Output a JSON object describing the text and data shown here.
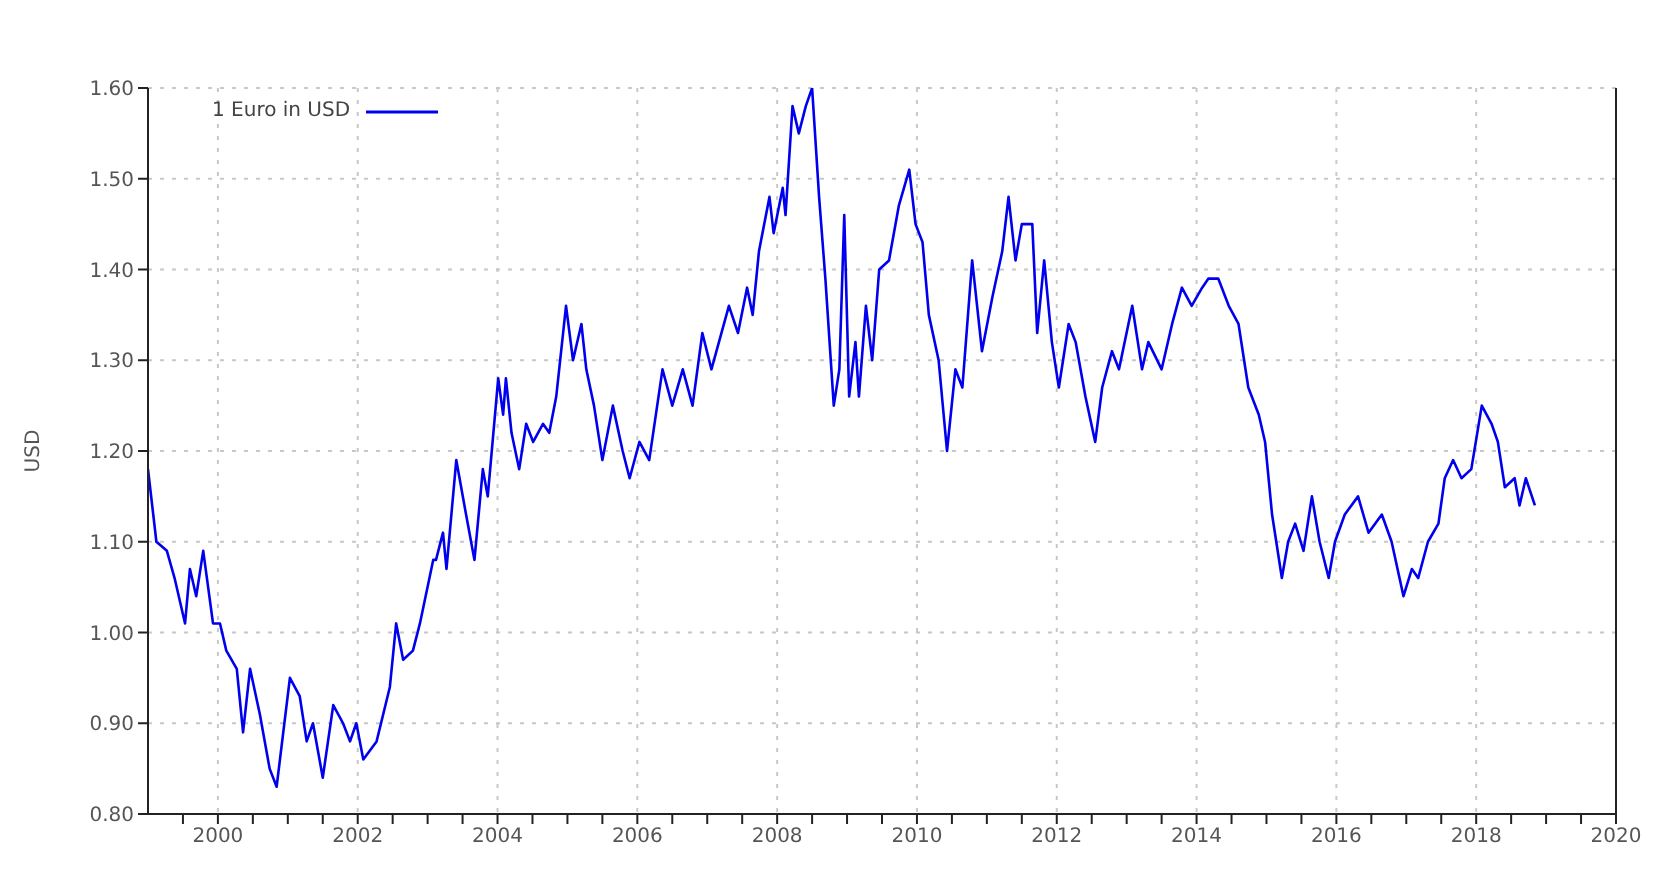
{
  "chart_data": {
    "type": "line",
    "ylabel": "USD",
    "legend": "top left",
    "grid": true,
    "marker": "none",
    "line_style": "solid",
    "xlim": [
      1999,
      2020
    ],
    "ylim": [
      0.8,
      1.6
    ],
    "xticks": [
      {
        "value": 1999.5,
        "label": null
      },
      {
        "value": 2000,
        "label": "2000"
      },
      {
        "value": 2000.5,
        "label": null
      },
      {
        "value": 2001,
        "label": null
      },
      {
        "value": 2001.5,
        "label": null
      },
      {
        "value": 2002,
        "label": "2002"
      },
      {
        "value": 2002.5,
        "label": null
      },
      {
        "value": 2003,
        "label": null
      },
      {
        "value": 2003.5,
        "label": null
      },
      {
        "value": 2004,
        "label": "2004"
      },
      {
        "value": 2004.5,
        "label": null
      },
      {
        "value": 2005,
        "label": null
      },
      {
        "value": 2005.5,
        "label": null
      },
      {
        "value": 2006,
        "label": "2006"
      },
      {
        "value": 2006.5,
        "label": null
      },
      {
        "value": 2007,
        "label": null
      },
      {
        "value": 2007.5,
        "label": null
      },
      {
        "value": 2008,
        "label": "2008"
      },
      {
        "value": 2008.5,
        "label": null
      },
      {
        "value": 2009,
        "label": null
      },
      {
        "value": 2009.5,
        "label": null
      },
      {
        "value": 2010,
        "label": "2010"
      },
      {
        "value": 2010.5,
        "label": null
      },
      {
        "value": 2011,
        "label": null
      },
      {
        "value": 2011.5,
        "label": null
      },
      {
        "value": 2012,
        "label": "2012"
      },
      {
        "value": 2012.5,
        "label": null
      },
      {
        "value": 2013,
        "label": null
      },
      {
        "value": 2013.5,
        "label": null
      },
      {
        "value": 2014,
        "label": "2014"
      },
      {
        "value": 2014.5,
        "label": null
      },
      {
        "value": 2015,
        "label": null
      },
      {
        "value": 2015.5,
        "label": null
      },
      {
        "value": 2016,
        "label": "2016"
      },
      {
        "value": 2016.5,
        "label": null
      },
      {
        "value": 2017,
        "label": null
      },
      {
        "value": 2017.5,
        "label": null
      },
      {
        "value": 2018,
        "label": "2018"
      },
      {
        "value": 2018.5,
        "label": null
      },
      {
        "value": 2019,
        "label": null
      },
      {
        "value": 2019.5,
        "label": null
      },
      {
        "value": 2020,
        "label": "2020"
      }
    ],
    "yticks": [
      {
        "value": 0.8,
        "label": "0.80"
      },
      {
        "value": 0.9,
        "label": "0.90"
      },
      {
        "value": 1.0,
        "label": "1.00"
      },
      {
        "value": 1.1,
        "label": "1.10"
      },
      {
        "value": 1.2,
        "label": "1.20"
      },
      {
        "value": 1.3,
        "label": "1.30"
      },
      {
        "value": 1.4,
        "label": "1.40"
      },
      {
        "value": 1.5,
        "label": "1.50"
      },
      {
        "value": 1.6,
        "label": "1.60"
      }
    ],
    "series": [
      {
        "name": "1 Euro in USD",
        "color": "#0000ee",
        "x": [
          1999.0,
          1999.12,
          1999.27,
          1999.38,
          1999.53,
          1999.6,
          1999.69,
          1999.79,
          1999.93,
          2000.03,
          2000.12,
          2000.27,
          2000.36,
          2000.46,
          2000.6,
          2000.74,
          2000.84,
          2001.03,
          2001.17,
          2001.27,
          2001.36,
          2001.5,
          2001.65,
          2001.79,
          2001.89,
          2001.98,
          2002.08,
          2002.27,
          2002.46,
          2002.55,
          2002.65,
          2002.79,
          2002.89,
          2003.08,
          2003.12,
          2003.22,
          2003.27,
          2003.41,
          2003.55,
          2003.67,
          2003.79,
          2003.86,
          2004.01,
          2004.08,
          2004.12,
          2004.2,
          2004.31,
          2004.41,
          2004.51,
          2004.65,
          2004.74,
          2004.84,
          2004.98,
          2005.08,
          2005.2,
          2005.27,
          2005.38,
          2005.5,
          2005.65,
          2005.79,
          2005.89,
          2006.03,
          2006.17,
          2006.36,
          2006.5,
          2006.65,
          2006.79,
          2006.93,
          2007.06,
          2007.31,
          2007.44,
          2007.57,
          2007.65,
          2007.74,
          2007.89,
          2007.95,
          2008.08,
          2008.12,
          2008.22,
          2008.31,
          2008.41,
          2008.5,
          2008.6,
          2008.69,
          2008.81,
          2008.89,
          2008.96,
          2009.03,
          2009.12,
          2009.17,
          2009.27,
          2009.36,
          2009.46,
          2009.6,
          2009.74,
          2009.89,
          2009.98,
          2010.08,
          2010.17,
          2010.31,
          2010.43,
          2010.55,
          2010.65,
          2010.79,
          2010.93,
          2011.08,
          2011.22,
          2011.31,
          2011.41,
          2011.5,
          2011.65,
          2011.72,
          2011.82,
          2011.93,
          2012.03,
          2012.17,
          2012.27,
          2012.41,
          2012.55,
          2012.65,
          2012.79,
          2012.89,
          2013.08,
          2013.22,
          2013.31,
          2013.5,
          2013.65,
          2013.79,
          2013.93,
          2014.08,
          2014.17,
          2014.31,
          2014.46,
          2014.6,
          2014.74,
          2014.89,
          2014.98,
          2015.08,
          2015.22,
          2015.31,
          2015.41,
          2015.53,
          2015.65,
          2015.76,
          2015.89,
          2015.98,
          2016.12,
          2016.31,
          2016.46,
          2016.65,
          2016.79,
          2016.96,
          2017.08,
          2017.17,
          2017.31,
          2017.46,
          2017.55,
          2017.67,
          2017.79,
          2017.93,
          2018.08,
          2018.22,
          2018.31,
          2018.41,
          2018.55,
          2018.62,
          2018.71,
          2018.84
        ],
        "values": [
          1.18,
          1.1,
          1.09,
          1.06,
          1.01,
          1.07,
          1.04,
          1.09,
          1.01,
          1.01,
          0.98,
          0.96,
          0.89,
          0.96,
          0.91,
          0.85,
          0.83,
          0.95,
          0.93,
          0.88,
          0.9,
          0.84,
          0.92,
          0.9,
          0.88,
          0.9,
          0.86,
          0.88,
          0.94,
          1.01,
          0.97,
          0.98,
          1.01,
          1.08,
          1.08,
          1.11,
          1.07,
          1.19,
          1.13,
          1.08,
          1.18,
          1.15,
          1.28,
          1.24,
          1.28,
          1.22,
          1.18,
          1.23,
          1.21,
          1.23,
          1.22,
          1.26,
          1.36,
          1.3,
          1.34,
          1.29,
          1.25,
          1.19,
          1.25,
          1.2,
          1.17,
          1.21,
          1.19,
          1.29,
          1.25,
          1.29,
          1.25,
          1.33,
          1.29,
          1.36,
          1.33,
          1.38,
          1.35,
          1.42,
          1.48,
          1.44,
          1.49,
          1.46,
          1.58,
          1.55,
          1.58,
          1.6,
          1.48,
          1.39,
          1.25,
          1.29,
          1.46,
          1.26,
          1.32,
          1.26,
          1.36,
          1.3,
          1.4,
          1.41,
          1.47,
          1.51,
          1.45,
          1.43,
          1.35,
          1.3,
          1.2,
          1.29,
          1.27,
          1.41,
          1.31,
          1.37,
          1.42,
          1.48,
          1.41,
          1.45,
          1.45,
          1.33,
          1.41,
          1.32,
          1.27,
          1.34,
          1.32,
          1.26,
          1.21,
          1.27,
          1.31,
          1.29,
          1.36,
          1.29,
          1.32,
          1.29,
          1.34,
          1.38,
          1.36,
          1.38,
          1.39,
          1.39,
          1.36,
          1.34,
          1.27,
          1.24,
          1.21,
          1.13,
          1.06,
          1.1,
          1.12,
          1.09,
          1.15,
          1.1,
          1.06,
          1.1,
          1.13,
          1.15,
          1.11,
          1.13,
          1.1,
          1.04,
          1.07,
          1.06,
          1.1,
          1.12,
          1.17,
          1.19,
          1.17,
          1.18,
          1.25,
          1.23,
          1.21,
          1.16,
          1.17,
          1.14,
          1.17,
          1.14
        ]
      }
    ]
  }
}
